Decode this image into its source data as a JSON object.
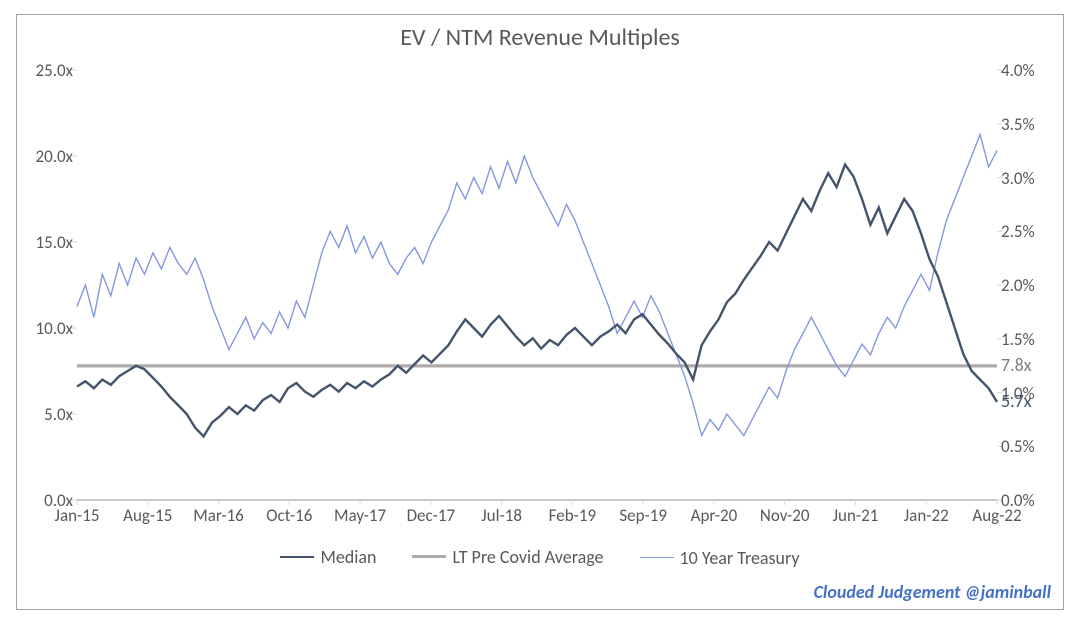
{
  "chart": {
    "type": "line-dual-axis",
    "title": "EV / NTM Revenue Multiples",
    "title_fontsize": 24,
    "title_color": "#595959",
    "background_color": "#ffffff",
    "border_color": "#a6a6a6",
    "plot_background": "#ffffff",
    "tick_color": "#d9d9d9",
    "axis_label_color": "#595959",
    "axis_fontsize": 17,
    "left_axis": {
      "min": 0,
      "max": 25,
      "step": 5,
      "suffix": "x",
      "ticks": [
        "0.0x",
        "5.0x",
        "10.0x",
        "15.0x",
        "20.0x",
        "25.0x"
      ]
    },
    "right_axis": {
      "min": 0,
      "max": 4,
      "step": 0.5,
      "suffix": "%",
      "ticks": [
        "0.0%",
        "0.5%",
        "1.0%",
        "1.5%",
        "2.0%",
        "2.5%",
        "3.0%",
        "3.5%",
        "4.0%"
      ]
    },
    "x_axis": {
      "labels": [
        "Jan-15",
        "Aug-15",
        "Mar-16",
        "Oct-16",
        "May-17",
        "Dec-17",
        "Jul-18",
        "Feb-19",
        "Sep-19",
        "Apr-20",
        "Nov-20",
        "Jun-21",
        "Jan-22",
        "Aug-22"
      ]
    },
    "series": {
      "median": {
        "name": "Median",
        "axis": "left",
        "color": "#44546a",
        "width": 2.4,
        "values": [
          6.6,
          6.9,
          6.5,
          7.0,
          6.7,
          7.2,
          7.5,
          7.8,
          7.6,
          7.1,
          6.6,
          6.0,
          5.5,
          5.0,
          4.2,
          3.7,
          4.5,
          4.9,
          5.4,
          5.0,
          5.5,
          5.2,
          5.8,
          6.1,
          5.7,
          6.5,
          6.8,
          6.3,
          6.0,
          6.4,
          6.7,
          6.3,
          6.8,
          6.5,
          6.9,
          6.6,
          7.0,
          7.3,
          7.8,
          7.4,
          7.9,
          8.4,
          8.0,
          8.5,
          9.0,
          9.8,
          10.5,
          10.0,
          9.5,
          10.2,
          10.7,
          10.1,
          9.5,
          9.0,
          9.4,
          8.8,
          9.3,
          9.0,
          9.6,
          10.0,
          9.5,
          9.0,
          9.5,
          9.8,
          10.2,
          9.7,
          10.5,
          10.8,
          10.2,
          9.6,
          9.1,
          8.5,
          8.0,
          7.0,
          9.0,
          9.8,
          10.5,
          11.5,
          12.0,
          12.8,
          13.5,
          14.2,
          15.0,
          14.5,
          15.5,
          16.5,
          17.5,
          16.8,
          18.0,
          19.0,
          18.2,
          19.5,
          18.8,
          17.5,
          16.0,
          17.0,
          15.5,
          16.5,
          17.5,
          16.8,
          15.5,
          14.0,
          13.0,
          11.5,
          10.0,
          8.5,
          7.5,
          7.0,
          6.5,
          5.7
        ]
      },
      "lt_avg": {
        "name": "LT Pre Covid Average",
        "axis": "left",
        "color": "#afabab",
        "width": 3.2,
        "value": 7.8
      },
      "treasury": {
        "name": "10 Year Treasury",
        "axis": "right",
        "color": "#8497e0",
        "width": 1.4,
        "values": [
          1.8,
          2.0,
          1.7,
          2.1,
          1.9,
          2.2,
          2.0,
          2.25,
          2.1,
          2.3,
          2.15,
          2.35,
          2.2,
          2.1,
          2.25,
          2.05,
          1.8,
          1.6,
          1.4,
          1.55,
          1.7,
          1.5,
          1.65,
          1.55,
          1.75,
          1.6,
          1.85,
          1.7,
          2.0,
          2.3,
          2.5,
          2.35,
          2.55,
          2.3,
          2.45,
          2.25,
          2.4,
          2.2,
          2.1,
          2.25,
          2.35,
          2.2,
          2.4,
          2.55,
          2.7,
          2.95,
          2.8,
          3.0,
          2.85,
          3.1,
          2.9,
          3.15,
          2.95,
          3.2,
          3.0,
          2.85,
          2.7,
          2.55,
          2.75,
          2.6,
          2.4,
          2.2,
          2.0,
          1.8,
          1.55,
          1.7,
          1.85,
          1.7,
          1.9,
          1.75,
          1.55,
          1.35,
          1.15,
          0.9,
          0.6,
          0.75,
          0.65,
          0.8,
          0.7,
          0.6,
          0.75,
          0.9,
          1.05,
          0.95,
          1.2,
          1.4,
          1.55,
          1.7,
          1.55,
          1.4,
          1.25,
          1.15,
          1.3,
          1.45,
          1.35,
          1.55,
          1.7,
          1.6,
          1.8,
          1.95,
          2.1,
          1.95,
          2.3,
          2.6,
          2.8,
          3.0,
          3.2,
          3.4,
          3.1,
          3.25
        ]
      }
    },
    "annotations": [
      {
        "text": "7.8x",
        "color": "#808080",
        "x_side": "right",
        "y_value": 7.8,
        "axis": "left"
      },
      {
        "text": "5.7x",
        "color": "#44546a",
        "x_side": "right",
        "y_value": 5.7,
        "axis": "left"
      }
    ],
    "legend": {
      "items": [
        {
          "key": "median",
          "label": "Median",
          "color": "#44546a",
          "width": 2.6
        },
        {
          "key": "lt_avg",
          "label": "LT Pre Covid Average",
          "color": "#afabab",
          "width": 3.2
        },
        {
          "key": "treasury",
          "label": "10 Year Treasury",
          "color": "#8497e0",
          "width": 1.6
        }
      ]
    },
    "attribution": {
      "text": "Clouded Judgement @jaminball",
      "color": "#4472c4",
      "fontsize": 18,
      "weight": "bold",
      "style": "italic"
    }
  }
}
